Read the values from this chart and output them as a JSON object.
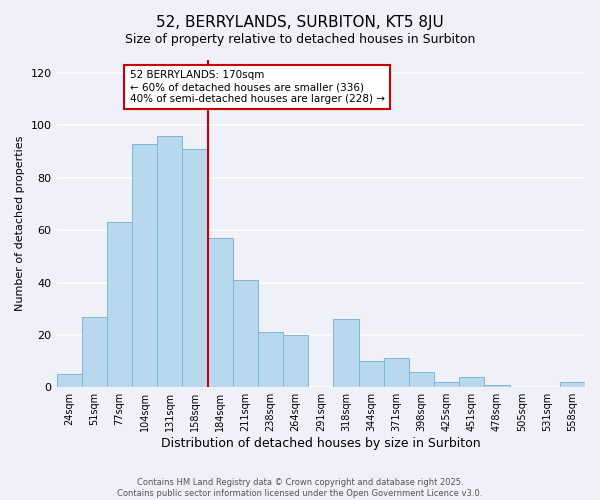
{
  "title": "52, BERRYLANDS, SURBITON, KT5 8JU",
  "subtitle": "Size of property relative to detached houses in Surbiton",
  "xlabel": "Distribution of detached houses by size in Surbiton",
  "ylabel": "Number of detached properties",
  "categories": [
    "24sqm",
    "51sqm",
    "77sqm",
    "104sqm",
    "131sqm",
    "158sqm",
    "184sqm",
    "211sqm",
    "238sqm",
    "264sqm",
    "291sqm",
    "318sqm",
    "344sqm",
    "371sqm",
    "398sqm",
    "425sqm",
    "451sqm",
    "478sqm",
    "505sqm",
    "531sqm",
    "558sqm"
  ],
  "values": [
    5,
    27,
    63,
    93,
    96,
    91,
    57,
    41,
    21,
    20,
    0,
    26,
    10,
    11,
    6,
    2,
    4,
    1,
    0,
    0,
    2
  ],
  "bar_color": "#b8d8ed",
  "bar_edge_color": "#7ab8d8",
  "bar_width": 1.0,
  "vline_x_index": 6,
  "vline_color": "#cc0000",
  "ylim": [
    0,
    125
  ],
  "yticks": [
    0,
    20,
    40,
    60,
    80,
    100,
    120
  ],
  "annotation_title": "52 BERRYLANDS: 170sqm",
  "annotation_line2": "← 60% of detached houses are smaller (336)",
  "annotation_line3": "40% of semi-detached houses are larger (228) →",
  "annotation_box_edge_color": "#cc0000",
  "annotation_box_bg": "#ffffff",
  "footer_line1": "Contains HM Land Registry data © Crown copyright and database right 2025.",
  "footer_line2": "Contains public sector information licensed under the Open Government Licence v3.0.",
  "bg_color": "#eff0f8",
  "grid_color": "#ffffff",
  "title_fontsize": 11,
  "subtitle_fontsize": 9,
  "axis_fontsize": 8,
  "ylabel_fontsize": 8
}
